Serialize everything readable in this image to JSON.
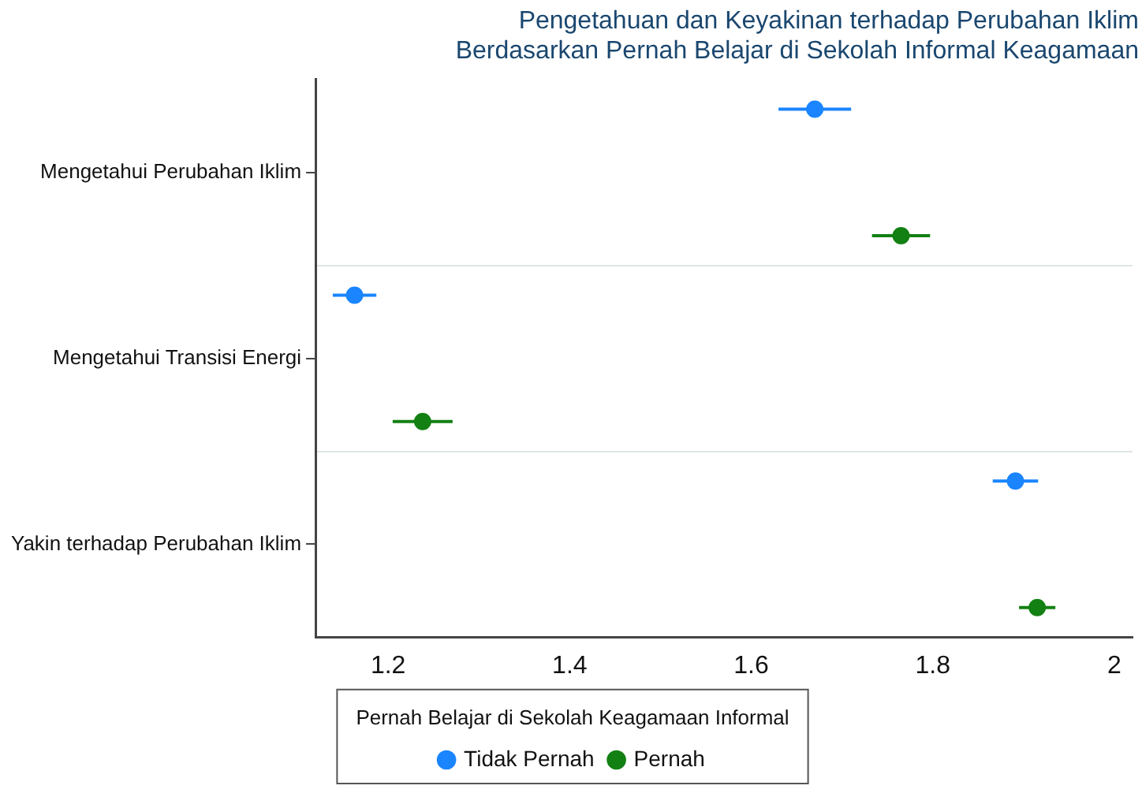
{
  "chart_data": {
    "type": "scatter",
    "orientation": "horizontal",
    "title": "Pengetahuan dan Keyakinan terhadap Perubahan Iklim\nBerdasarkan Pernah Belajar di Sekolah Informal Keagamaan",
    "legend_title": "Pernah Belajar di Sekolah Keagamaan Informal",
    "categories": [
      "Mengetahui Perubahan Iklim",
      "Mengetahui Transisi Energi",
      "Yakin terhadap Perubahan Iklim"
    ],
    "series": [
      {
        "name": "Tidak Pernah",
        "color": "#1a85ff",
        "values": [
          1.67,
          1.163,
          1.891
        ],
        "errors": [
          0.04,
          0.024,
          0.025
        ]
      },
      {
        "name": "Pernah",
        "color": "#138013",
        "values": [
          1.765,
          1.238,
          1.915
        ],
        "errors": [
          0.032,
          0.033,
          0.02
        ]
      }
    ],
    "xlim": [
      1.12,
      2.02
    ],
    "xticks": [
      1.2,
      1.4,
      1.6,
      1.8,
      2
    ],
    "grid": "y",
    "legend": "bottom",
    "marker": "circle"
  }
}
